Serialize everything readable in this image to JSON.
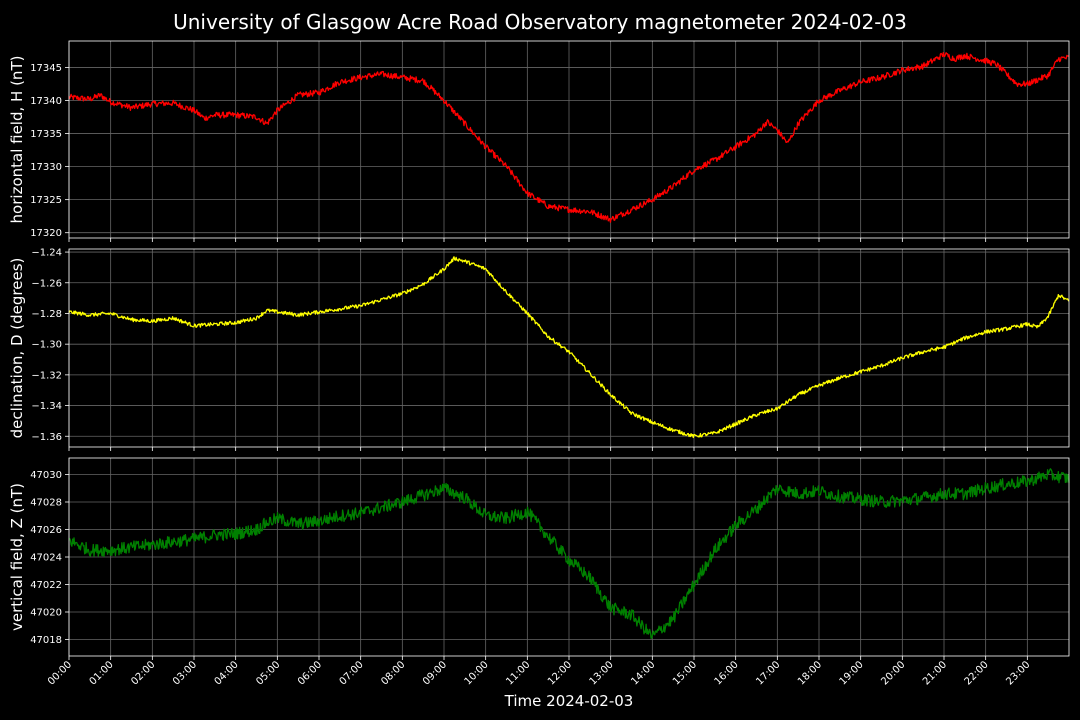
{
  "colors": {
    "background": "#000000",
    "grid": "#666666",
    "axis": "#ffffff"
  },
  "chart_data": {
    "type": "line",
    "title": "University of Glasgow Acre Road Observatory magnetometer 2024-02-03",
    "xlabel": "Time 2024-02-03",
    "x_tick_labels": [
      "00:00",
      "01:00",
      "02:00",
      "03:00",
      "04:00",
      "05:00",
      "06:00",
      "07:00",
      "08:00",
      "09:00",
      "10:00",
      "11:00",
      "12:00",
      "13:00",
      "14:00",
      "15:00",
      "16:00",
      "17:00",
      "18:00",
      "19:00",
      "20:00",
      "21:00",
      "22:00",
      "23:00"
    ],
    "x_range_hours": [
      0,
      24
    ],
    "grid": true,
    "panels": [
      {
        "ylabel": "horizontal field, H (nT)",
        "color": "#ff0000",
        "ylim": [
          17319.2,
          17349.0
        ],
        "yticks": [
          17320,
          17325,
          17330,
          17335,
          17340,
          17345
        ],
        "ytick_labels": [
          "17320",
          "17325",
          "17330",
          "17335",
          "17340",
          "17345"
        ],
        "noise": 0.45,
        "x": [
          0,
          0.5,
          0.75,
          1.0,
          1.5,
          2.0,
          2.5,
          3.0,
          3.25,
          3.5,
          4.0,
          4.5,
          4.75,
          5.0,
          5.5,
          6.0,
          6.5,
          7.0,
          7.5,
          8.0,
          8.5,
          9.0,
          9.5,
          10.0,
          10.5,
          11.0,
          11.5,
          12.0,
          12.5,
          13.0,
          13.5,
          14.0,
          14.5,
          15.0,
          15.5,
          16.0,
          16.5,
          16.75,
          17.0,
          17.25,
          17.5,
          18.0,
          18.5,
          19.0,
          19.5,
          20.0,
          20.5,
          21.0,
          21.25,
          21.5,
          22.0,
          22.25,
          22.5,
          22.75,
          23.0,
          23.5,
          23.75,
          24.0
        ],
        "values": [
          17340.5,
          17340.2,
          17340.8,
          17339.8,
          17338.9,
          17339.5,
          17339.6,
          17338.5,
          17337.3,
          17337.8,
          17337.8,
          17337.5,
          17336.5,
          17338.5,
          17340.8,
          17341.2,
          17342.8,
          17343.5,
          17344.0,
          17343.5,
          17343.0,
          17340.0,
          17336.5,
          17333.0,
          17330.0,
          17326.0,
          17324.0,
          17323.5,
          17323.2,
          17322.0,
          17323.5,
          17325.0,
          17327.0,
          17329.5,
          17331.0,
          17333.0,
          17335.0,
          17336.8,
          17335.5,
          17333.5,
          17336.5,
          17340.0,
          17341.5,
          17342.8,
          17343.5,
          17344.6,
          17345.2,
          17347.0,
          17346.3,
          17346.8,
          17346.0,
          17345.5,
          17344.0,
          17342.5,
          17342.5,
          17343.8,
          17346.3,
          17346.5
        ]
      },
      {
        "ylabel": "declination, D (degrees)",
        "color": "#ffff00",
        "ylim": [
          -1.367,
          -1.238
        ],
        "yticks": [
          -1.36,
          -1.34,
          -1.32,
          -1.3,
          -1.28,
          -1.26,
          -1.24
        ],
        "ytick_labels": [
          "−1.36",
          "−1.34",
          "−1.32",
          "−1.30",
          "−1.28",
          "−1.26",
          "−1.24"
        ],
        "noise": 0.0012,
        "x": [
          0,
          0.5,
          1.0,
          1.5,
          2.0,
          2.5,
          3.0,
          3.5,
          4.0,
          4.5,
          4.75,
          5.0,
          5.5,
          6.0,
          6.5,
          7.0,
          7.5,
          8.0,
          8.5,
          9.0,
          9.25,
          9.5,
          10.0,
          10.5,
          11.0,
          11.5,
          12.0,
          12.5,
          13.0,
          13.5,
          14.0,
          14.5,
          15.0,
          15.5,
          16.0,
          16.5,
          17.0,
          17.5,
          18.0,
          18.5,
          19.0,
          19.5,
          20.0,
          20.5,
          21.0,
          21.5,
          22.0,
          22.5,
          23.0,
          23.25,
          23.5,
          23.75,
          24.0
        ],
        "values": [
          -1.279,
          -1.281,
          -1.28,
          -1.284,
          -1.285,
          -1.283,
          -1.288,
          -1.287,
          -1.286,
          -1.283,
          -1.278,
          -1.279,
          -1.281,
          -1.279,
          -1.277,
          -1.275,
          -1.271,
          -1.267,
          -1.261,
          -1.251,
          -1.244,
          -1.246,
          -1.251,
          -1.266,
          -1.28,
          -1.295,
          -1.305,
          -1.319,
          -1.333,
          -1.345,
          -1.351,
          -1.356,
          -1.36,
          -1.358,
          -1.352,
          -1.346,
          -1.342,
          -1.333,
          -1.327,
          -1.322,
          -1.318,
          -1.314,
          -1.309,
          -1.305,
          -1.302,
          -1.296,
          -1.292,
          -1.29,
          -1.287,
          -1.289,
          -1.282,
          -1.268,
          -1.272
        ]
      },
      {
        "ylabel": "vertical field, Z (nT)",
        "color": "#008000",
        "ylim": [
          47016.8,
          47031.2
        ],
        "yticks": [
          47018,
          47020,
          47022,
          47024,
          47026,
          47028,
          47030
        ],
        "ytick_labels": [
          "47018",
          "47020",
          "47022",
          "47024",
          "47026",
          "47028",
          "47030"
        ],
        "noise": 0.45,
        "x": [
          0,
          0.5,
          1.0,
          1.5,
          2.0,
          2.5,
          3.0,
          3.5,
          4.0,
          4.5,
          4.75,
          5.0,
          5.5,
          6.0,
          6.5,
          7.0,
          7.5,
          8.0,
          8.5,
          9.0,
          9.5,
          10.0,
          10.5,
          11.0,
          11.5,
          12.0,
          12.5,
          13.0,
          13.5,
          14.0,
          14.5,
          15.0,
          15.5,
          16.0,
          16.5,
          16.75,
          17.0,
          17.5,
          18.0,
          18.5,
          19.0,
          19.5,
          20.0,
          20.5,
          21.0,
          21.5,
          22.0,
          22.5,
          23.0,
          23.5,
          24.0
        ],
        "values": [
          47025.2,
          47024.5,
          47024.5,
          47024.7,
          47024.9,
          47025.1,
          47025.3,
          47025.6,
          47025.7,
          47026.0,
          47026.5,
          47026.8,
          47026.4,
          47026.6,
          47027.0,
          47027.2,
          47027.6,
          47028.0,
          47028.5,
          47029.0,
          47028.3,
          47027.0,
          47026.8,
          47027.3,
          47025.5,
          47023.8,
          47022.5,
          47020.3,
          47019.8,
          47018.2,
          47019.5,
          47022.0,
          47024.5,
          47026.3,
          47027.5,
          47028.3,
          47029.0,
          47028.6,
          47028.8,
          47028.4,
          47028.2,
          47028.0,
          47028.1,
          47028.3,
          47028.6,
          47028.6,
          47029.0,
          47029.3,
          47029.5,
          47030.0,
          47029.7
        ]
      }
    ]
  }
}
